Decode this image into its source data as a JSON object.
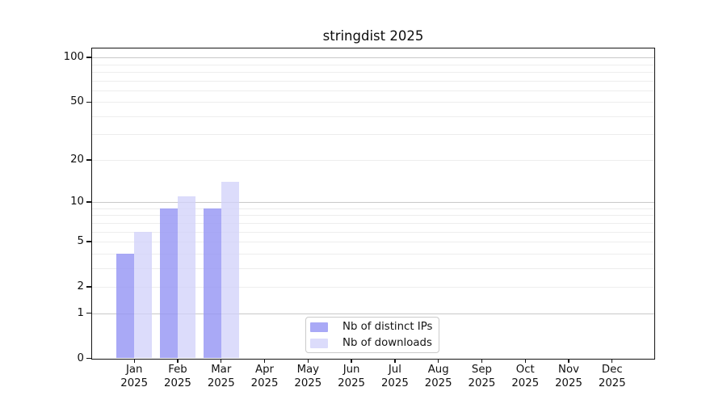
{
  "figure": {
    "title": "stringdist 2025"
  },
  "chart_data": {
    "type": "bar",
    "title": "stringdist 2025",
    "xlabel": "",
    "ylabel": "",
    "categories": [
      "Jan 2025",
      "Feb 2025",
      "Mar 2025",
      "Apr 2025",
      "May 2025",
      "Jun 2025",
      "Jul 2025",
      "Aug 2025",
      "Sep 2025",
      "Oct 2025",
      "Nov 2025",
      "Dec 2025"
    ],
    "series": [
      {
        "name": "Nb of distinct IPs",
        "color": "#9696f4",
        "fill_opacity": 0.82,
        "values": [
          4,
          9,
          9,
          0,
          0,
          0,
          0,
          0,
          0,
          0,
          0,
          0
        ]
      },
      {
        "name": "Nb of downloads",
        "color": "#d0d0fa",
        "fill_opacity": 0.75,
        "values": [
          6,
          11,
          14,
          0,
          0,
          0,
          0,
          0,
          0,
          0,
          0,
          0
        ]
      }
    ],
    "y_scale": "log1p",
    "ylim": [
      0,
      115
    ],
    "y_ticks": [
      0,
      1,
      2,
      5,
      10,
      20,
      50,
      100
    ],
    "y_major_gridlines": [
      1,
      10,
      100
    ],
    "y_minor_gridlines": [
      2,
      3,
      4,
      5,
      6,
      7,
      8,
      9,
      20,
      30,
      40,
      50,
      60,
      70,
      80,
      90
    ],
    "grid": true,
    "legend_position": "lower center",
    "axis_color": "#151515",
    "major_grid_color": "#c9c9c9",
    "minor_grid_color": "#ededed"
  }
}
